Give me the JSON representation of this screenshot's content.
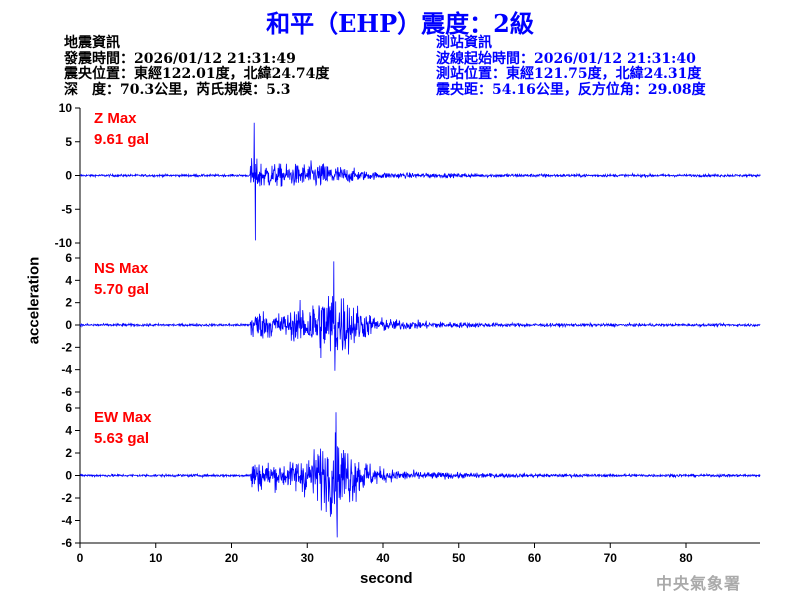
{
  "title": "和平（EHP）震度：2級",
  "quake_info": {
    "heading": "地震資訊",
    "origin_time": "發震時間：2026/01/12 21:31:49",
    "epicenter": "震央位置：東經122.01度，北緯24.74度",
    "depth_magnitude": "深　度：70.3公里，芮氏規模：5.3"
  },
  "station_info": {
    "heading": "測站資訊",
    "wave_start": "波線起始時間：2026/01/12 21:31:40",
    "location": "測站位置：東經121.75度，北緯24.31度",
    "distance": "震央距：54.16公里，反方位角：29.08度"
  },
  "watermark": "中央氣象署",
  "colors": {
    "trace": "#0000ff",
    "label": "#ff0000",
    "title": "#0000ff"
  },
  "chart_data": {
    "type": "line",
    "xlabel": "second",
    "ylabel": "acceleration",
    "xlim": [
      0,
      90
    ],
    "xticks": [
      "0",
      "10",
      "20",
      "30",
      "40",
      "50",
      "60",
      "70",
      "80"
    ],
    "grid": false,
    "panels": [
      {
        "name": "Z Max",
        "max_label": "9.61 gal",
        "ylim": [
          -10,
          10
        ],
        "yticks": [
          "10",
          "5",
          "0",
          "-5",
          "-10"
        ],
        "onset_s": 22.5,
        "peak_s": 23,
        "max": 7.8,
        "min": -9.61
      },
      {
        "name": "NS Max",
        "max_label": "5.70 gal",
        "ylim": [
          -6,
          6
        ],
        "yticks": [
          "6",
          "4",
          "2",
          "0",
          "-2",
          "-4",
          "-6"
        ],
        "onset_s": 22.5,
        "peak_s": 33.5,
        "max": 5.7,
        "min": -4.1
      },
      {
        "name": "EW Max",
        "max_label": "5.63 gal",
        "ylim": [
          -6,
          6
        ],
        "yticks": [
          "6",
          "4",
          "2",
          "0",
          "-2",
          "-4",
          "-6"
        ],
        "onset_s": 22.5,
        "peak_s": 33.8,
        "max": 5.63,
        "min": -5.5
      }
    ]
  }
}
